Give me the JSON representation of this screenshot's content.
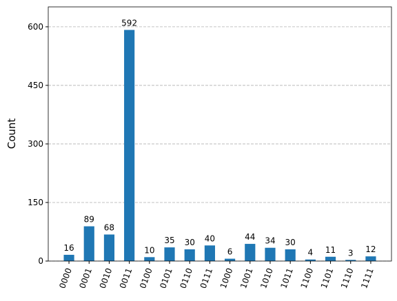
{
  "chart_data": {
    "type": "bar",
    "y_label": "Count",
    "categories": [
      "0000",
      "0001",
      "0010",
      "0011",
      "0100",
      "0101",
      "0110",
      "0111",
      "1000",
      "1001",
      "1010",
      "1011",
      "1100",
      "1101",
      "1110",
      "1111"
    ],
    "values": [
      16,
      89,
      68,
      592,
      10,
      35,
      30,
      40,
      6,
      44,
      34,
      30,
      4,
      11,
      3,
      12
    ],
    "color": "#1f77b4",
    "ylim": [
      0,
      651
    ],
    "yticks": [
      0,
      150,
      300,
      450,
      600
    ],
    "grid": true
  }
}
